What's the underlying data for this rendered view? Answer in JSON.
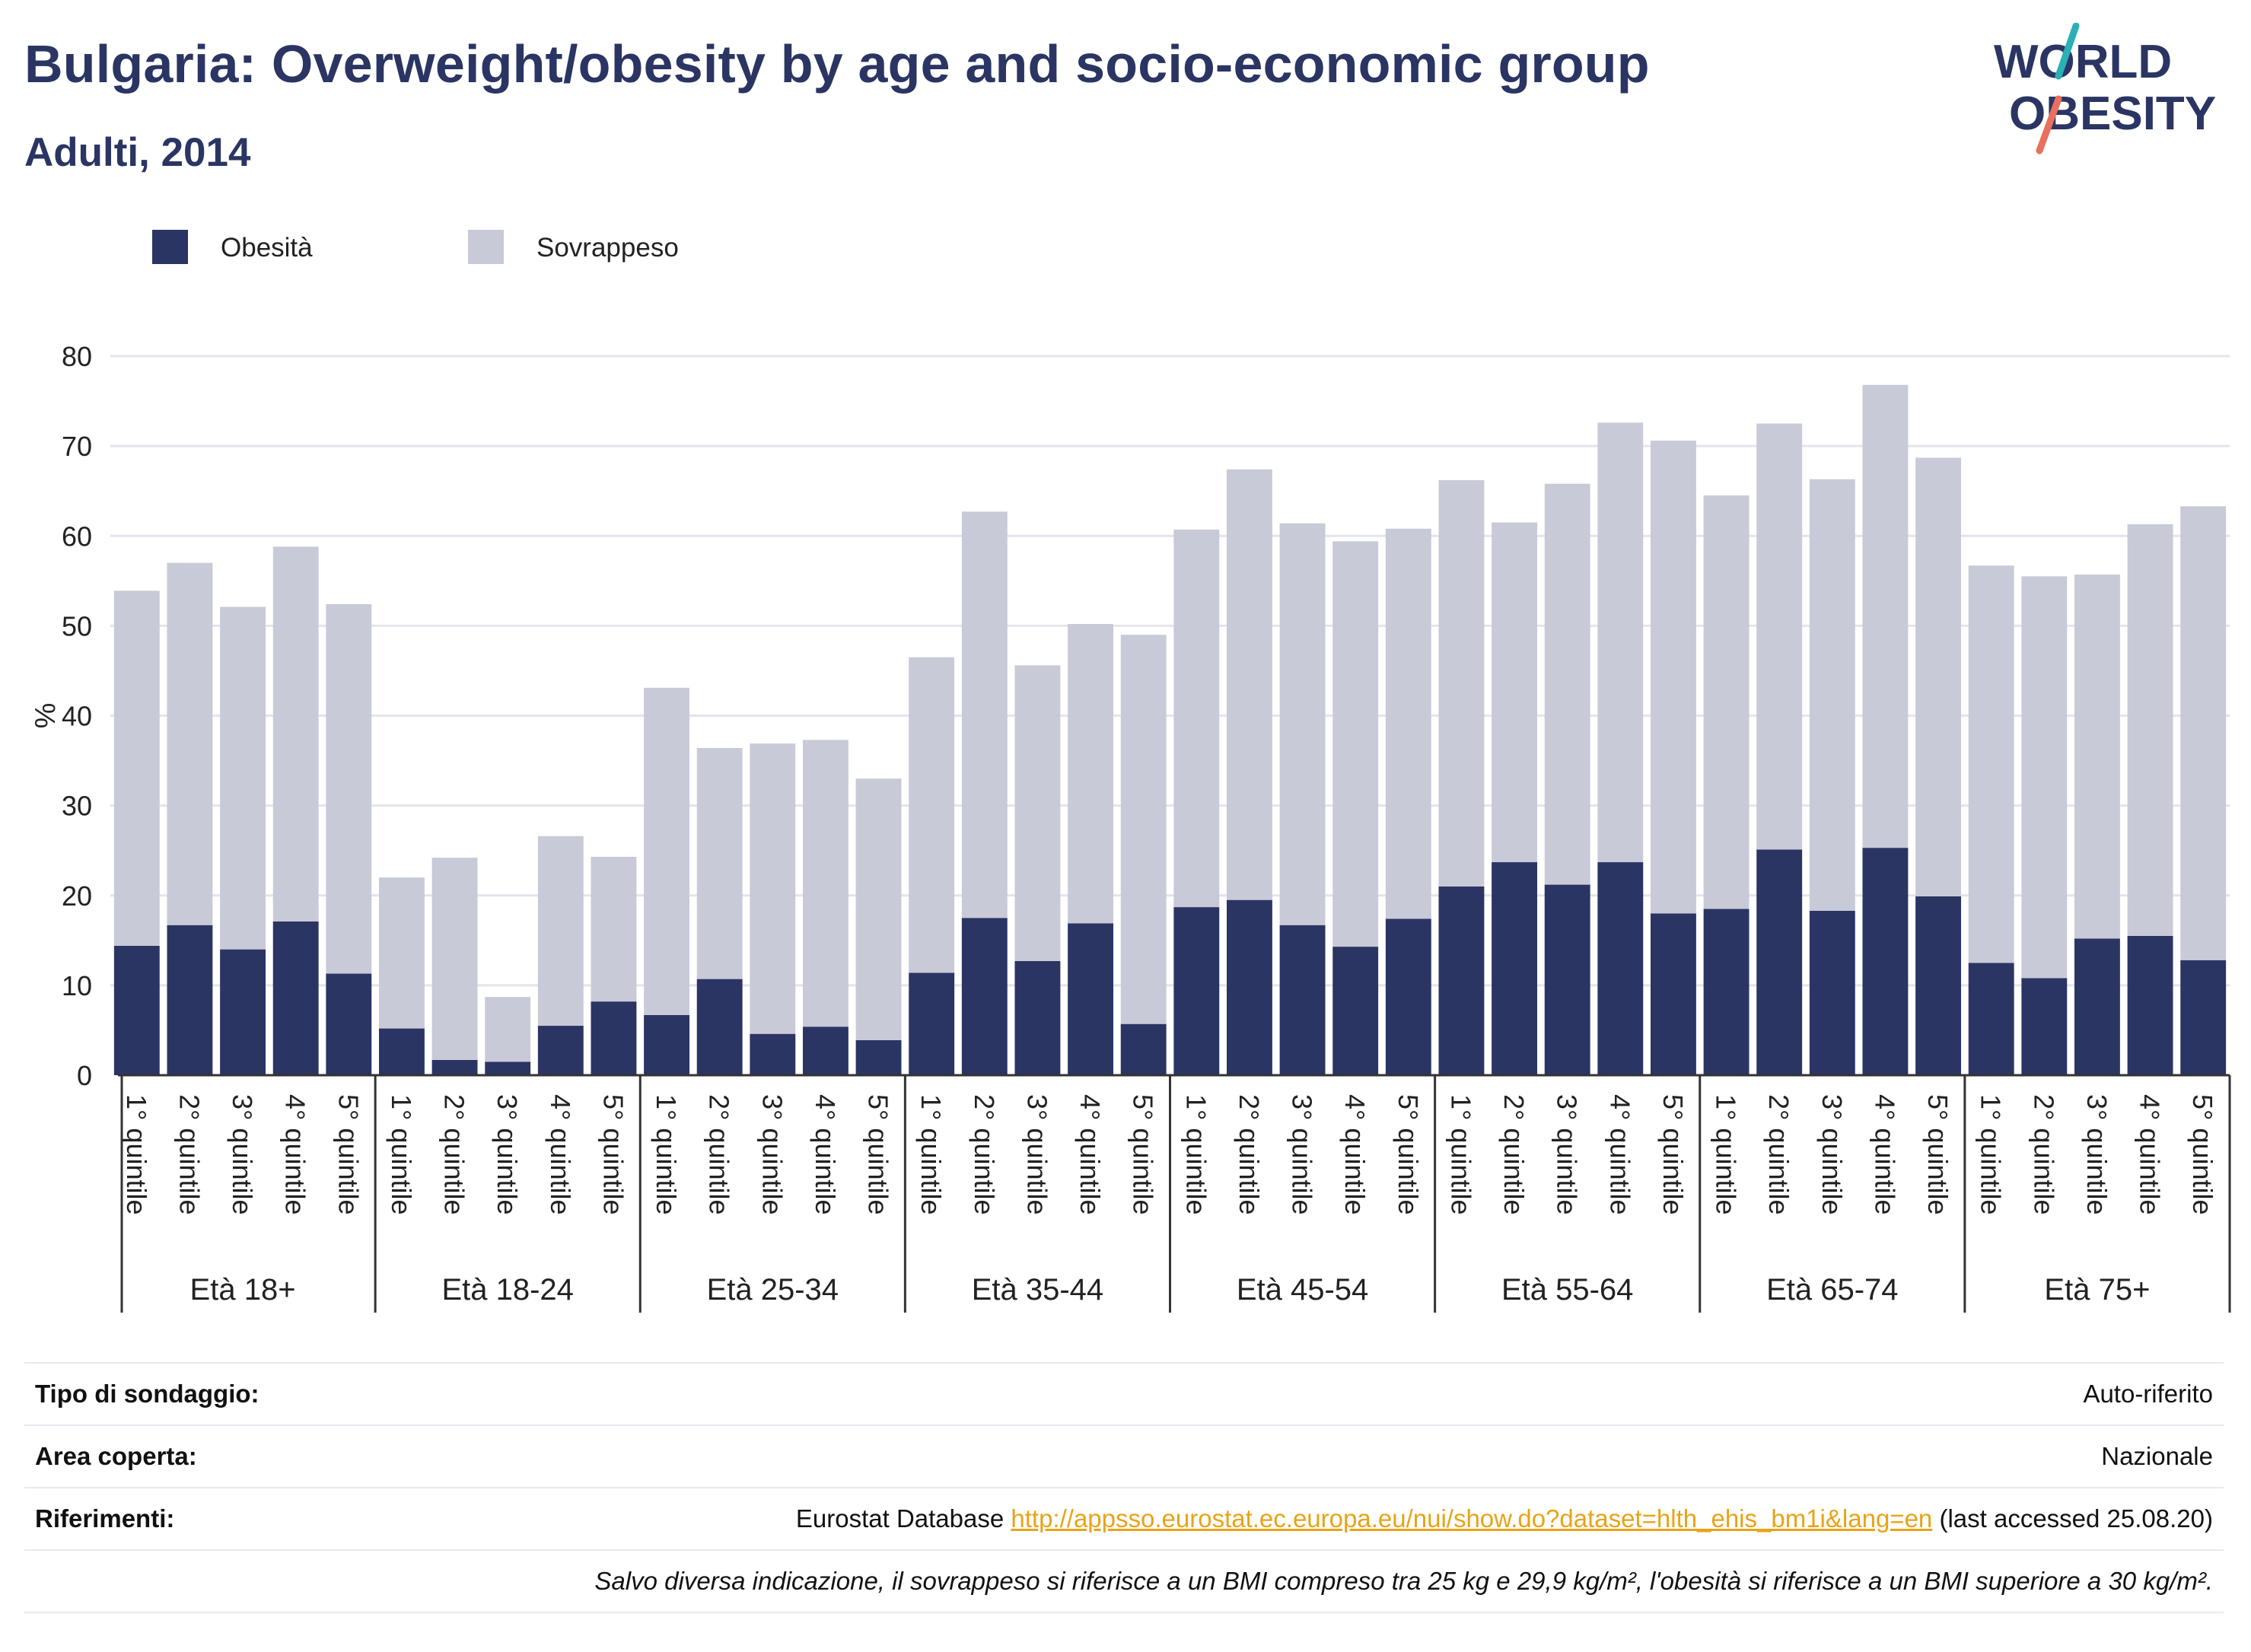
{
  "header": {
    "title": "Bulgaria: Overweight/obesity by age and socio-economic group",
    "subtitle": "Adulti, 2014"
  },
  "logo": {
    "line1": "WORLD",
    "line2": "OBESITY"
  },
  "colors": {
    "obesity": "#2b3563",
    "overweight": "#c9cad8",
    "title": "#2b3563",
    "link": "#e8a317",
    "logo_teal": "#2ab0b5",
    "logo_coral": "#e8705c"
  },
  "chart_data": {
    "type": "bar",
    "stacked": true,
    "ylabel": "%",
    "ylim": [
      0,
      80
    ],
    "yticks": [
      0,
      10,
      20,
      30,
      40,
      50,
      60,
      70,
      80
    ],
    "grid": true,
    "legend_position": "top-left",
    "groups": [
      "Età 18+",
      "Età 18-24",
      "Età 25-34",
      "Età 35-44",
      "Età 45-54",
      "Età 55-64",
      "Età 65-74",
      "Età 75+"
    ],
    "categories": [
      "1° quintile",
      "2° quintile",
      "3° quintile",
      "4° quintile",
      "5° quintile"
    ],
    "series": [
      {
        "name": "Obesità",
        "values": [
          [
            14.4,
            16.7,
            14.0,
            17.1,
            11.3
          ],
          [
            5.2,
            1.7,
            1.5,
            5.5,
            8.2
          ],
          [
            6.7,
            10.7,
            4.6,
            5.4,
            3.9
          ],
          [
            11.4,
            17.5,
            12.7,
            16.9,
            5.7
          ],
          [
            18.7,
            19.5,
            16.7,
            14.3,
            17.4
          ],
          [
            21.0,
            23.7,
            21.2,
            23.7,
            18.0
          ],
          [
            18.5,
            25.1,
            18.3,
            25.3,
            19.9
          ],
          [
            12.5,
            10.8,
            15.2,
            15.5,
            12.8
          ]
        ]
      },
      {
        "name": "Sovrappeso",
        "values": [
          [
            39.5,
            40.3,
            38.1,
            41.7,
            41.1
          ],
          [
            16.8,
            22.5,
            7.2,
            21.1,
            16.1
          ],
          [
            36.4,
            25.7,
            32.3,
            31.9,
            29.1
          ],
          [
            35.1,
            45.2,
            32.9,
            33.3,
            43.3
          ],
          [
            42.0,
            47.9,
            44.7,
            45.1,
            43.4
          ],
          [
            45.2,
            37.8,
            44.6,
            48.9,
            52.6
          ],
          [
            46.0,
            47.4,
            48.0,
            51.5,
            48.8
          ],
          [
            44.2,
            44.7,
            40.5,
            45.8,
            50.5
          ]
        ]
      }
    ]
  },
  "info": {
    "survey_label": "Tipo di sondaggio:",
    "survey_value": "Auto-riferito",
    "area_label": "Area coperta:",
    "area_value": "Nazionale",
    "ref_label": "Riferimenti:",
    "ref_prefix": "Eurostat Database ",
    "ref_link": "http://appsso.eurostat.ec.europa.eu/nui/show.do?dataset=hlth_ehis_bm1i&lang=en",
    "ref_suffix": " (last accessed 25.08.20)",
    "note": "Salvo diversa indicazione, il sovrappeso si riferisce a un BMI compreso tra 25 kg e 29,9 kg/m², l'obesità si riferisce a un BMI superiore a 30 kg/m²."
  }
}
